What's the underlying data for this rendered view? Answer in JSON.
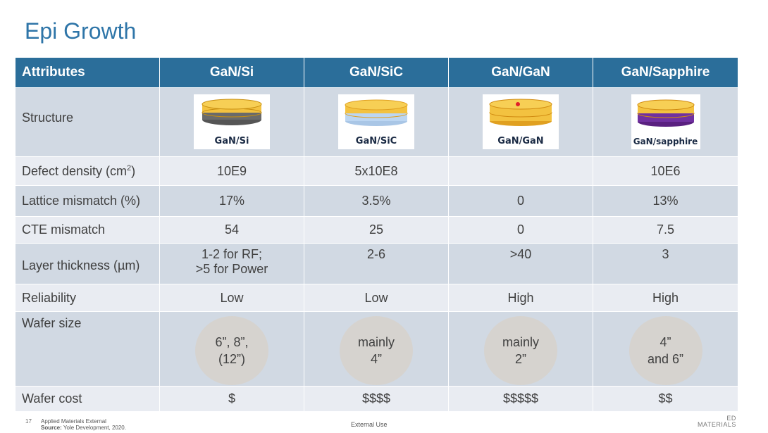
{
  "slide": {
    "title": "Epi Growth"
  },
  "table": {
    "headers": [
      "Attributes",
      "GaN/Si",
      "GaN/SiC",
      "GaN/GaN",
      "GaN/Sapphire"
    ],
    "rows": {
      "structure": {
        "label": "Structure",
        "captions": [
          "GaN/Si",
          "GaN/SiC",
          "GaN/GaN",
          "GaN/sapphire"
        ]
      },
      "defect": {
        "label_main": "Defect density (cm",
        "label_sup": "2",
        "label_end": ")",
        "values": [
          "10E9",
          "5x10E8",
          "",
          "10E6"
        ]
      },
      "lattice": {
        "label": "Lattice mismatch (%)",
        "values": [
          "17%",
          "3.5%",
          "0",
          "13%"
        ]
      },
      "cte": {
        "label": "CTE mismatch",
        "values": [
          "54",
          "25",
          "0",
          "7.5"
        ]
      },
      "layer": {
        "label": "Layer thickness (µm)",
        "values": [
          "2-6",
          ">40",
          "3"
        ],
        "first_line1": "1-2 for RF;",
        "first_line2": ">5 for Power"
      },
      "reliability": {
        "label": "Reliability",
        "values": [
          "Low",
          "Low",
          "High",
          "High"
        ]
      },
      "wafer_size": {
        "label": "Wafer size",
        "lines": [
          [
            "6”, 8”,",
            "(12”)"
          ],
          [
            "mainly",
            "4”"
          ],
          [
            "mainly",
            "2”"
          ],
          [
            "4”",
            "and 6”"
          ]
        ]
      },
      "wafer_cost": {
        "label": "Wafer cost",
        "values": [
          "$",
          "$$$$",
          "$$$$$",
          "$$"
        ]
      }
    }
  },
  "footer": {
    "page_number": "17",
    "classification": "Applied Materials External",
    "source_label": "Source:",
    "source_text": "Yole Development, 2020.",
    "center": "External Use",
    "logo_line1": "ED",
    "logo_line2": "MATERIALS"
  },
  "colors": {
    "title": "#2e75a8",
    "header_bg": "#2b6e9a",
    "row_dark": "#d1d9e3",
    "row_light": "#e9ecf2",
    "bubble": "#d6d3cf",
    "gan_layer": "#f3c240",
    "si_layer": "#6a6a6a",
    "sic_layer": "#bcd6f2",
    "sapphire_layer": "#7030a0"
  }
}
